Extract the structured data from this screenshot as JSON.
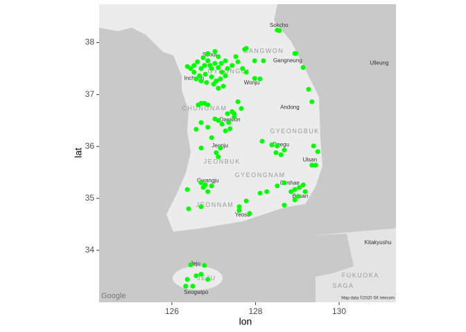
{
  "chart_data": {
    "type": "scatter",
    "x_label": "lon",
    "y_label": "lat",
    "xlim": [
      124.26,
      131.36
    ],
    "ylim": [
      33.0,
      38.74
    ],
    "xticks": [
      126,
      128,
      130
    ],
    "yticks": [
      34,
      35,
      36,
      37,
      38
    ],
    "color": "#00ff00",
    "x": [
      126.53,
      126.61,
      126.7,
      126.78,
      126.86,
      126.95,
      127.03,
      127.11,
      127.2,
      126.66,
      126.8,
      126.95,
      127.06,
      127.16,
      126.53,
      126.45,
      126.86,
      127.03,
      127.11,
      127.28,
      127.33,
      127.23,
      127.11,
      127.0,
      126.83,
      126.7,
      126.58,
      126.37,
      126.75,
      126.91,
      127.18,
      127.28,
      127.44,
      127.58,
      127.69,
      127.53,
      127.78,
      127.74,
      127.98,
      128.19,
      128.97,
      129.14,
      128.57,
      128.52,
      128.94,
      127.98,
      128.11,
      129.35,
      129.27,
      127.58,
      127.66,
      127.49,
      127.44,
      127.78,
      127.2,
      127.36,
      127.28,
      127.39,
      127.11,
      127.03,
      127.49,
      127.33,
      126.63,
      126.7,
      126.78,
      126.86,
      126.58,
      126.7,
      126.86,
      126.95,
      126.7,
      127.16,
      127.11,
      127.06,
      126.75,
      126.86,
      126.8,
      126.7,
      126.95,
      126.37,
      126.4,
      126.7,
      128.49,
      128.61,
      128.69,
      128.52,
      128.16,
      128.39,
      129.39,
      129.44,
      129.35,
      129.49,
      128.85,
      128.94,
      129.05,
      129.14,
      129.02,
      129.19,
      128.69,
      128.52,
      128.27,
      128.11,
      127.78,
      127.61,
      127.86,
      128.69,
      128.94,
      127.61,
      126.45,
      126.58,
      126.7,
      126.37,
      126.33,
      126.5,
      126.86,
      126.78
    ],
    "y": [
      37.56,
      37.63,
      37.5,
      37.56,
      37.65,
      37.5,
      37.6,
      37.52,
      37.43,
      37.36,
      37.39,
      37.34,
      37.26,
      37.3,
      37.43,
      37.5,
      37.79,
      37.83,
      37.73,
      37.65,
      37.5,
      37.16,
      37.12,
      37.2,
      37.23,
      37.26,
      37.3,
      37.54,
      37.71,
      37.56,
      37.6,
      37.36,
      37.56,
      37.63,
      37.5,
      37.73,
      37.89,
      37.87,
      37.65,
      37.65,
      37.79,
      37.52,
      38.23,
      38.24,
      37.79,
      37.31,
      37.3,
      36.86,
      37.1,
      36.86,
      36.73,
      36.63,
      36.67,
      37.43,
      36.43,
      36.46,
      36.3,
      36.34,
      36.5,
      36.53,
      36.57,
      36.63,
      36.8,
      36.83,
      36.83,
      36.8,
      36.33,
      36.46,
      36.37,
      36.17,
      35.97,
      35.97,
      35.8,
      35.88,
      35.21,
      35.13,
      35.26,
      35.3,
      35.24,
      35.17,
      34.8,
      34.84,
      35.88,
      35.84,
      35.93,
      36.01,
      36.1,
      36.03,
      36.01,
      35.64,
      35.64,
      35.9,
      35.13,
      35.17,
      35.21,
      35.26,
      35.04,
      35.13,
      35.3,
      35.24,
      35.13,
      35.1,
      34.95,
      34.84,
      34.71,
      34.87,
      34.97,
      34.77,
      33.72,
      33.51,
      33.54,
      33.44,
      33.31,
      33.31,
      33.44,
      33.71
    ],
    "annotations": [
      {
        "text": "Seoul",
        "x": 126.9,
        "y": 37.76,
        "kind": "place"
      },
      {
        "text": "Incheon",
        "x": 126.53,
        "y": 37.31,
        "kind": "place"
      },
      {
        "text": "Wonju",
        "x": 127.91,
        "y": 37.22,
        "kind": "place"
      },
      {
        "text": "Gangneung",
        "x": 128.77,
        "y": 37.65,
        "kind": "place"
      },
      {
        "text": "Sokcho",
        "x": 128.56,
        "y": 38.33,
        "kind": "place"
      },
      {
        "text": "Daejeon",
        "x": 127.39,
        "y": 36.51,
        "kind": "place"
      },
      {
        "text": "Andong",
        "x": 128.82,
        "y": 36.75,
        "kind": "place"
      },
      {
        "text": "Jeonju",
        "x": 127.15,
        "y": 36.01,
        "kind": "place"
      },
      {
        "text": "Daegu",
        "x": 128.61,
        "y": 36.03,
        "kind": "place"
      },
      {
        "text": "Ulsan",
        "x": 129.3,
        "y": 35.74,
        "kind": "place"
      },
      {
        "text": "Gwangju",
        "x": 126.86,
        "y": 35.34,
        "kind": "place"
      },
      {
        "text": "Gimhae",
        "x": 128.82,
        "y": 35.29,
        "kind": "place"
      },
      {
        "text": "Busan",
        "x": 129.07,
        "y": 35.04,
        "kind": "place"
      },
      {
        "text": "Yeosu",
        "x": 127.69,
        "y": 34.68,
        "kind": "place"
      },
      {
        "text": "Jeju",
        "x": 126.56,
        "y": 33.74,
        "kind": "place"
      },
      {
        "text": "Seogwipo",
        "x": 126.58,
        "y": 33.19,
        "kind": "place"
      },
      {
        "text": "Ulleung",
        "x": 130.96,
        "y": 37.6,
        "kind": "place"
      },
      {
        "text": "Kitakyushu",
        "x": 130.93,
        "y": 34.15,
        "kind": "place"
      },
      {
        "text": "GANGWON",
        "x": 128.19,
        "y": 37.83,
        "kind": "region"
      },
      {
        "text": "GYEONGGI",
        "x": 127.36,
        "y": 37.44,
        "kind": "region"
      },
      {
        "text": "CHUNGNAM",
        "x": 126.78,
        "y": 36.73,
        "kind": "region"
      },
      {
        "text": "GYEONGBUK",
        "x": 128.94,
        "y": 36.29,
        "kind": "region"
      },
      {
        "text": "JEONBUK",
        "x": 127.2,
        "y": 35.7,
        "kind": "region"
      },
      {
        "text": "GYEONGNAM",
        "x": 128.11,
        "y": 35.44,
        "kind": "region"
      },
      {
        "text": "JEONNAM",
        "x": 127.03,
        "y": 34.87,
        "kind": "region"
      },
      {
        "text": "JEJU",
        "x": 126.83,
        "y": 33.46,
        "kind": "region"
      },
      {
        "text": "FUKUOKA",
        "x": 130.51,
        "y": 33.51,
        "kind": "region"
      },
      {
        "text": "SAGA",
        "x": 130.1,
        "y": 33.31,
        "kind": "region"
      }
    ],
    "credits": {
      "logo": "Google",
      "data": "Map data ©2020 SK telecom"
    }
  }
}
